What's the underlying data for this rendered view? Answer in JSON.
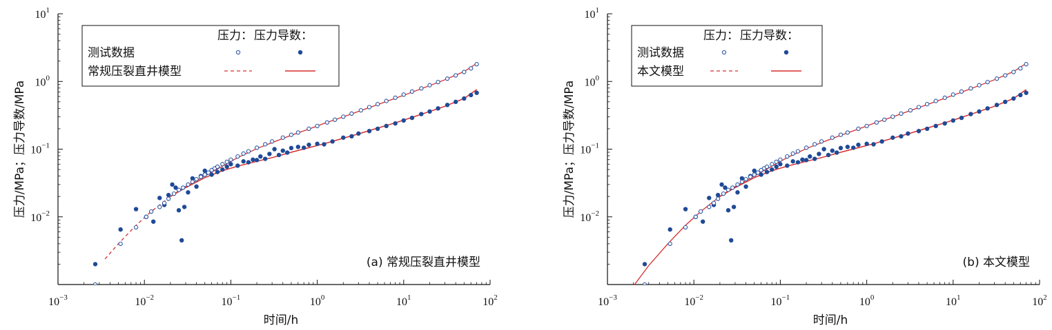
{
  "colors": {
    "open_marker": "#2a55a3",
    "filled_marker": "#1f4a96",
    "model_line": "#d62d2d",
    "axis": "#111111"
  },
  "chart_data": [
    {
      "type": "scatter",
      "panel_label": "(a) 常规压裂直井模型",
      "xlabel": "时间/h",
      "ylabel": "压力/MPa；压力导数/MPa",
      "xscale": "log",
      "yscale": "log",
      "xlim": [
        0.001,
        100
      ],
      "ylim": [
        0.001,
        10
      ],
      "x_ticks": [
        {
          "base": "10",
          "exp": "−3"
        },
        {
          "base": "10",
          "exp": "−2"
        },
        {
          "base": "10",
          "exp": "−1"
        },
        {
          "base": "10",
          "exp": "0"
        },
        {
          "base": "10",
          "exp": "1"
        },
        {
          "base": "10",
          "exp": "2"
        }
      ],
      "y_ticks": [
        {
          "base": "10",
          "exp": "−2"
        },
        {
          "base": "10",
          "exp": "−1"
        },
        {
          "base": "10",
          "exp": "0"
        },
        {
          "base": "10",
          "exp": "1"
        }
      ],
      "legend": {
        "placement": "top-left",
        "header_pressure": "压力：",
        "header_derivative": "压力导数：",
        "row_data": "测试数据",
        "row_model": "常规压裂直井模型"
      },
      "model_style": "dashed_pressure_solid_derivative",
      "model_pressure_start": 0.0035
    },
    {
      "type": "scatter",
      "panel_label": "(b) 本文模型",
      "xlabel": "时间/h",
      "ylabel": "压力/MPa；压力导数/MPa",
      "xscale": "log",
      "yscale": "log",
      "xlim": [
        0.001,
        100
      ],
      "ylim": [
        0.001,
        10
      ],
      "x_ticks": [
        {
          "base": "10",
          "exp": "−3"
        },
        {
          "base": "10",
          "exp": "−2"
        },
        {
          "base": "10",
          "exp": "−1"
        },
        {
          "base": "10",
          "exp": "0"
        },
        {
          "base": "10",
          "exp": "1"
        },
        {
          "base": "10",
          "exp": "2"
        }
      ],
      "y_ticks": [
        {
          "base": "10",
          "exp": "−2"
        },
        {
          "base": "10",
          "exp": "−1"
        },
        {
          "base": "10",
          "exp": "0"
        },
        {
          "base": "10",
          "exp": "1"
        }
      ],
      "legend": {
        "placement": "top-left",
        "header_pressure": "压力：",
        "header_derivative": "压力导数：",
        "row_data": "测试数据",
        "row_model": "本文模型"
      },
      "model_style": "dashed_pressure_solid_derivative",
      "model_pressure_start": 0.002
    }
  ],
  "measured_pressure": [
    [
      0.0027,
      0.001
    ],
    [
      0.0053,
      0.004
    ],
    [
      0.008,
      0.007
    ],
    [
      0.0105,
      0.01
    ],
    [
      0.012,
      0.012
    ],
    [
      0.015,
      0.014
    ],
    [
      0.017,
      0.016
    ],
    [
      0.019,
      0.0185
    ],
    [
      0.022,
      0.022
    ],
    [
      0.025,
      0.025
    ],
    [
      0.028,
      0.027
    ],
    [
      0.032,
      0.03
    ],
    [
      0.036,
      0.033
    ],
    [
      0.04,
      0.036
    ],
    [
      0.045,
      0.039
    ],
    [
      0.05,
      0.042
    ],
    [
      0.055,
      0.045
    ],
    [
      0.06,
      0.049
    ],
    [
      0.065,
      0.052
    ],
    [
      0.07,
      0.055
    ],
    [
      0.08,
      0.06
    ],
    [
      0.09,
      0.065
    ],
    [
      0.1,
      0.07
    ],
    [
      0.12,
      0.078
    ],
    [
      0.14,
      0.086
    ],
    [
      0.16,
      0.093
    ],
    [
      0.2,
      0.105
    ],
    [
      0.25,
      0.118
    ],
    [
      0.3,
      0.13
    ],
    [
      0.4,
      0.148
    ],
    [
      0.5,
      0.163
    ],
    [
      0.6,
      0.176
    ],
    [
      0.8,
      0.2
    ],
    [
      1.0,
      0.22
    ],
    [
      1.3,
      0.248
    ],
    [
      1.6,
      0.272
    ],
    [
      2.0,
      0.302
    ],
    [
      2.5,
      0.335
    ],
    [
      3.2,
      0.375
    ],
    [
      4.0,
      0.418
    ],
    [
      5.0,
      0.462
    ],
    [
      6.3,
      0.515
    ],
    [
      8.0,
      0.575
    ],
    [
      10,
      0.64
    ],
    [
      12.5,
      0.71
    ],
    [
      16,
      0.79
    ],
    [
      20,
      0.88
    ],
    [
      25,
      0.98
    ],
    [
      32,
      1.1
    ],
    [
      40,
      1.23
    ],
    [
      50,
      1.38
    ],
    [
      60,
      1.56
    ],
    [
      70,
      1.8
    ]
  ],
  "measured_derivative": [
    [
      0.0027,
      0.002
    ],
    [
      0.0053,
      0.0065
    ],
    [
      0.008,
      0.013
    ],
    [
      0.0105,
      0.01
    ],
    [
      0.0127,
      0.0085
    ],
    [
      0.015,
      0.019
    ],
    [
      0.017,
      0.015
    ],
    [
      0.019,
      0.021
    ],
    [
      0.021,
      0.03
    ],
    [
      0.023,
      0.027
    ],
    [
      0.025,
      0.0125
    ],
    [
      0.027,
      0.0045
    ],
    [
      0.029,
      0.014
    ],
    [
      0.032,
      0.023
    ],
    [
      0.036,
      0.037
    ],
    [
      0.04,
      0.028
    ],
    [
      0.045,
      0.04
    ],
    [
      0.05,
      0.048
    ],
    [
      0.06,
      0.042
    ],
    [
      0.07,
      0.046
    ],
    [
      0.08,
      0.05
    ],
    [
      0.09,
      0.055
    ],
    [
      0.1,
      0.06
    ],
    [
      0.12,
      0.057
    ],
    [
      0.14,
      0.066
    ],
    [
      0.16,
      0.064
    ],
    [
      0.18,
      0.07
    ],
    [
      0.2,
      0.069
    ],
    [
      0.22,
      0.078
    ],
    [
      0.25,
      0.072
    ],
    [
      0.28,
      0.085
    ],
    [
      0.32,
      0.1
    ],
    [
      0.36,
      0.082
    ],
    [
      0.4,
      0.095
    ],
    [
      0.45,
      0.089
    ],
    [
      0.5,
      0.104
    ],
    [
      0.6,
      0.108
    ],
    [
      0.7,
      0.105
    ],
    [
      0.8,
      0.116
    ],
    [
      1.0,
      0.12
    ],
    [
      1.2,
      0.118
    ],
    [
      1.5,
      0.13
    ],
    [
      2.0,
      0.148
    ],
    [
      2.5,
      0.155
    ],
    [
      3.0,
      0.17
    ],
    [
      4.0,
      0.185
    ],
    [
      5.0,
      0.2
    ],
    [
      6.3,
      0.22
    ],
    [
      8.0,
      0.24
    ],
    [
      10,
      0.265
    ],
    [
      12.5,
      0.29
    ],
    [
      16,
      0.33
    ],
    [
      20,
      0.36
    ],
    [
      25,
      0.4
    ],
    [
      32,
      0.45
    ],
    [
      40,
      0.5
    ],
    [
      50,
      0.56
    ],
    [
      60,
      0.63
    ],
    [
      70,
      0.68
    ]
  ],
  "model_pressure": [
    [
      0.002,
      0.00095
    ],
    [
      0.003,
      0.0019
    ],
    [
      0.005,
      0.004
    ],
    [
      0.008,
      0.0075
    ],
    [
      0.012,
      0.012
    ],
    [
      0.02,
      0.02
    ],
    [
      0.03,
      0.028
    ],
    [
      0.05,
      0.04
    ],
    [
      0.08,
      0.056
    ],
    [
      0.12,
      0.075
    ],
    [
      0.2,
      0.102
    ],
    [
      0.3,
      0.125
    ],
    [
      0.5,
      0.16
    ],
    [
      0.8,
      0.198
    ],
    [
      1.2,
      0.24
    ],
    [
      2.0,
      0.3
    ],
    [
      3.0,
      0.36
    ],
    [
      5.0,
      0.455
    ],
    [
      8.0,
      0.565
    ],
    [
      12,
      0.68
    ],
    [
      20,
      0.87
    ],
    [
      30,
      1.06
    ],
    [
      50,
      1.4
    ],
    [
      70,
      1.85
    ]
  ],
  "model_derivative": [
    [
      0.02,
      0.02
    ],
    [
      0.03,
      0.027
    ],
    [
      0.05,
      0.038
    ],
    [
      0.08,
      0.048
    ],
    [
      0.12,
      0.056
    ],
    [
      0.2,
      0.066
    ],
    [
      0.3,
      0.075
    ],
    [
      0.5,
      0.09
    ],
    [
      0.8,
      0.105
    ],
    [
      1.2,
      0.12
    ],
    [
      2.0,
      0.145
    ],
    [
      3.0,
      0.168
    ],
    [
      5.0,
      0.205
    ],
    [
      8.0,
      0.245
    ],
    [
      12,
      0.29
    ],
    [
      20,
      0.36
    ],
    [
      30,
      0.43
    ],
    [
      50,
      0.56
    ],
    [
      70,
      0.76
    ]
  ]
}
